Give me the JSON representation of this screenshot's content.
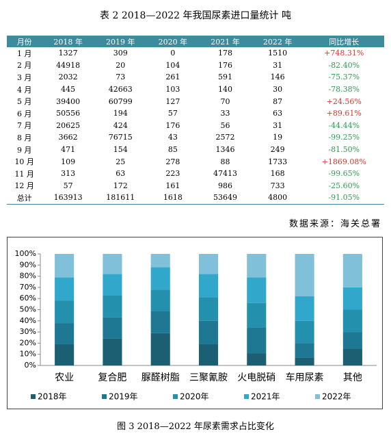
{
  "table": {
    "title": "表 2  2018—2022 年我国尿素进口量统计   吨",
    "header": [
      "月份",
      "2018 年",
      "2019 年",
      "2020 年",
      "2021 年",
      "2022 年",
      "同比增长"
    ],
    "rows": [
      [
        "1 月",
        "1327",
        "309",
        "0",
        "178",
        "1510",
        "+748.31%"
      ],
      [
        "2 月",
        "44918",
        "20",
        "104",
        "176",
        "31",
        "-82.40%"
      ],
      [
        "3 月",
        "2032",
        "73",
        "261",
        "591",
        "146",
        "-75.37%"
      ],
      [
        "4 月",
        "445",
        "42663",
        "103",
        "140",
        "30",
        "-78.38%"
      ],
      [
        "5 月",
        "39400",
        "60799",
        "127",
        "70",
        "87",
        "+24.56%"
      ],
      [
        "6 月",
        "50556",
        "194",
        "57",
        "33",
        "63",
        "+89.61%"
      ],
      [
        "7 月",
        "20625",
        "424",
        "176",
        "56",
        "31",
        "-44.44%"
      ],
      [
        "8 月",
        "3662",
        "76715",
        "43",
        "2572",
        "19",
        "-99.25%"
      ],
      [
        "9 月",
        "471",
        "154",
        "85",
        "1346",
        "249",
        "-81.50%"
      ],
      [
        "10 月",
        "109",
        "25",
        "278",
        "88",
        "1733",
        "+1869.08%"
      ],
      [
        "11 月",
        "313",
        "63",
        "223",
        "47413",
        "168",
        "-99.65%"
      ],
      [
        "12 月",
        "57",
        "172",
        "161",
        "986",
        "733",
        "-25.60%"
      ],
      [
        "总计",
        "163913",
        "181611",
        "1618",
        "53649",
        "4800",
        "-91.05%"
      ]
    ],
    "source": "数据来源：海关总署"
  },
  "chart_data": {
    "type": "stacked_bar",
    "categories": [
      "农业",
      "复合肥",
      "脲醛树脂",
      "三聚氰胺",
      "火电脱硝",
      "车用尿素",
      "其他"
    ],
    "series": [
      {
        "name": "2018年",
        "color": "#1d5f72",
        "values": [
          19,
          24,
          29,
          19,
          11,
          7,
          15
        ]
      },
      {
        "name": "2019年",
        "color": "#1e7894",
        "values": [
          19,
          19,
          20,
          21,
          23,
          13,
          15
        ]
      },
      {
        "name": "2020年",
        "color": "#2390ae",
        "values": [
          20,
          20,
          19,
          21,
          22,
          20,
          20
        ]
      },
      {
        "name": "2021年",
        "color": "#30a7cb",
        "values": [
          21,
          19,
          20,
          21,
          23,
          22,
          20
        ]
      },
      {
        "name": "2022年",
        "color": "#80c0d8",
        "values": [
          21,
          18,
          12,
          18,
          21,
          38,
          30
        ]
      }
    ],
    "ylim": [
      0,
      100
    ],
    "yticks": [
      {
        "value": 0,
        "label": "0%"
      },
      {
        "value": 10,
        "label": "10%"
      },
      {
        "value": 20,
        "label": "20%"
      },
      {
        "value": 30,
        "label": "30%"
      },
      {
        "value": 40,
        "label": "40%"
      },
      {
        "value": 50,
        "label": "50%"
      },
      {
        "value": 60,
        "label": "60%"
      },
      {
        "value": 70,
        "label": "70%"
      },
      {
        "value": 80,
        "label": "80%"
      },
      {
        "value": 90,
        "label": "90%"
      },
      {
        "value": 100,
        "label": "100%"
      }
    ],
    "grid": false
  },
  "figure_caption": "图 3  2018—2022 年尿素需求占比变化"
}
